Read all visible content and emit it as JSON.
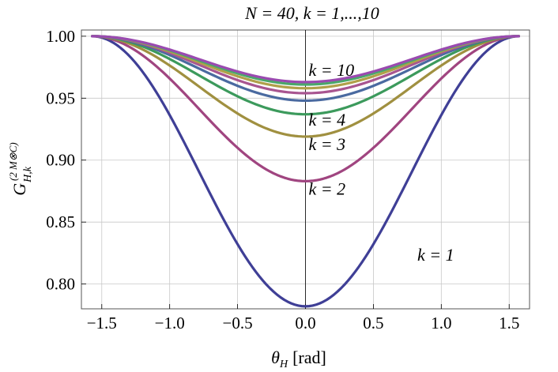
{
  "chart_data": {
    "type": "line",
    "title": "N = 40, k = 1,...,10",
    "xlabel_symbol": "θ",
    "xlabel_sub": "H",
    "xlabel_unit": "[rad]",
    "ylabel_symbol": "G",
    "ylabel_sub": "H,k",
    "ylabel_sup": "(2 M⊗C)",
    "xlim": [
      -1.65,
      1.65
    ],
    "ylim": [
      0.78,
      1.005
    ],
    "x_ticks": [
      -1.5,
      -1.0,
      -0.5,
      0.0,
      0.5,
      1.0,
      1.5
    ],
    "x_tick_labels": [
      "−1.5",
      "−1.0",
      "−0.5",
      "0.0",
      "0.5",
      "1.0",
      "1.5"
    ],
    "y_ticks": [
      0.8,
      0.85,
      0.9,
      0.95,
      1.0
    ],
    "y_tick_labels": [
      "0.80",
      "0.85",
      "0.90",
      "0.95",
      "1.00"
    ],
    "grid": true,
    "x_range": [
      -1.5708,
      1.5708
    ],
    "series": [
      {
        "k": 1,
        "min": 0.782,
        "color": "#3f3f96"
      },
      {
        "k": 2,
        "min": 0.883,
        "color": "#a04580"
      },
      {
        "k": 3,
        "min": 0.919,
        "color": "#a09040"
      },
      {
        "k": 4,
        "min": 0.937,
        "color": "#3c9a5c"
      },
      {
        "k": 5,
        "min": 0.948,
        "color": "#4a6aa0"
      },
      {
        "k": 6,
        "min": 0.954,
        "color": "#a85590"
      },
      {
        "k": 7,
        "min": 0.958,
        "color": "#b0a04a"
      },
      {
        "k": 8,
        "min": 0.961,
        "color": "#4aa86a"
      },
      {
        "k": 10,
        "min": 0.963,
        "color": "#9a4ab0"
      }
    ],
    "annotations": [
      {
        "text": "k = 10",
        "x": 0.0,
        "y": 0.968
      },
      {
        "text": "k = 4",
        "x": 0.0,
        "y": 0.928
      },
      {
        "text": "k = 3",
        "x": 0.0,
        "y": 0.908
      },
      {
        "text": "k = 2",
        "x": 0.0,
        "y": 0.872
      },
      {
        "text": "k = 1",
        "x": 0.8,
        "y": 0.819
      }
    ]
  }
}
